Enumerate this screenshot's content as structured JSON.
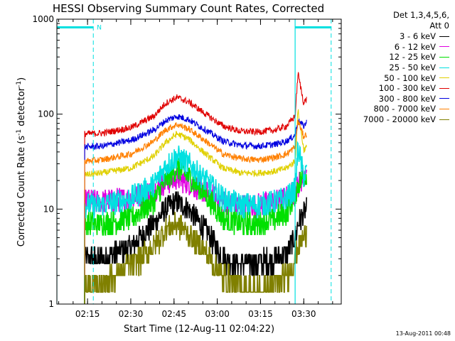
{
  "chart_data": {
    "type": "line",
    "title": "HESSI Observing Summary Count Rates, Corrected",
    "xlabel": "Start Time (12-Aug-11 02:04:22)",
    "ylabel": "Corrected Count Rate (s",
    "ylabel_sup": "-1",
    "ylabel_tail": " detector",
    "ylabel_end": ")",
    "y_scale": "log",
    "ylim": [
      1,
      1000
    ],
    "xlim": [
      "02:04:22",
      "03:43:00"
    ],
    "x_ticks": [
      "02:15",
      "02:30",
      "02:45",
      "03:00",
      "03:15",
      "03:30"
    ],
    "y_ticks": [
      "1",
      "10",
      "100",
      "1000"
    ],
    "legend_header": [
      "Det 1,3,4,5,6,",
      "Att 0"
    ],
    "legend_placement": "right, outside plot",
    "x_time_samples": [
      "02:14",
      "02:20",
      "02:30",
      "02:38",
      "02:42",
      "02:46",
      "02:50",
      "02:56",
      "03:02",
      "03:08",
      "03:14",
      "03:20",
      "03:24",
      "03:27",
      "03:28",
      "03:30",
      "03:31"
    ],
    "series": [
      {
        "name": "3 - 6 keV",
        "color": "#000000",
        "values": [
          3,
          3,
          4,
          7,
          10,
          12,
          10,
          6,
          3,
          2.7,
          2.7,
          3,
          3.5,
          5,
          7,
          9,
          10
        ]
      },
      {
        "name": "6 - 12 keV",
        "color": "#e000e0",
        "values": [
          12,
          12,
          13,
          16,
          19,
          21,
          19,
          15,
          12,
          11,
          11,
          12,
          13,
          15,
          18,
          22,
          24
        ]
      },
      {
        "name": "12 - 25 keV",
        "color": "#00e000",
        "values": [
          7,
          7,
          8,
          12,
          20,
          27,
          22,
          14,
          8,
          7,
          7,
          8,
          9,
          14,
          18,
          22,
          24
        ]
      },
      {
        "name": "25 - 50 keV",
        "color": "#00e0e0",
        "values": [
          11,
          11,
          13,
          18,
          28,
          36,
          30,
          20,
          13,
          11,
          11,
          12,
          13,
          16,
          45,
          22,
          25
        ]
      },
      {
        "name": "50 - 100 keV",
        "color": "#e0d000",
        "values": [
          23,
          24,
          27,
          36,
          50,
          62,
          55,
          38,
          27,
          24,
          24,
          25,
          27,
          32,
          110,
          42,
          45
        ]
      },
      {
        "name": "100 - 300 keV",
        "color": "#e00000",
        "values": [
          62,
          63,
          72,
          95,
          130,
          150,
          135,
          100,
          75,
          66,
          65,
          68,
          75,
          95,
          270,
          130,
          145
        ]
      },
      {
        "name": "300 - 800 keV",
        "color": "#0000e0",
        "values": [
          45,
          46,
          53,
          68,
          85,
          95,
          88,
          68,
          52,
          47,
          46,
          48,
          52,
          60,
          85,
          75,
          82
        ]
      },
      {
        "name": "800 - 7000 keV",
        "color": "#ff8000",
        "values": [
          32,
          33,
          38,
          52,
          68,
          78,
          70,
          52,
          38,
          34,
          33,
          35,
          38,
          45,
          85,
          58,
          62
        ]
      },
      {
        "name": "7000 - 20000 keV",
        "color": "#808000",
        "values": [
          1.5,
          1.7,
          2.5,
          4,
          6,
          7,
          5.5,
          3.5,
          2,
          1.5,
          1.4,
          1.6,
          2,
          3,
          4,
          5,
          6
        ]
      }
    ],
    "markers": {
      "color": "#00e0e0",
      "solid_x": [
        "02:04:22",
        "03:27:00"
      ],
      "dashed_x": [
        "02:17:00",
        "03:39:30"
      ],
      "segments": [
        [
          "02:04:22",
          "02:17:00"
        ],
        [
          "03:27:00",
          "03:39:30"
        ]
      ],
      "segment_y": 820,
      "label": "N",
      "label_x": "02:17:00"
    }
  },
  "footer_stamp": "13-Aug-2011 00:48"
}
